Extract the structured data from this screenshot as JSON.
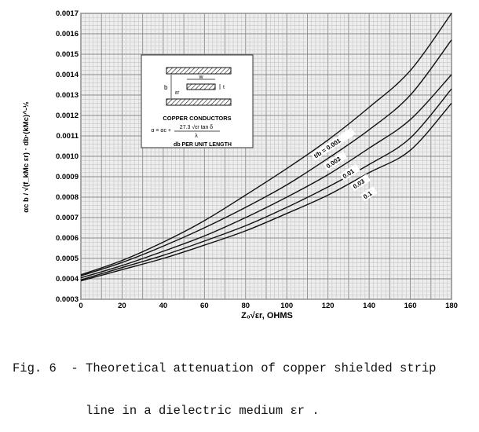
{
  "chart_data": {
    "type": "line",
    "title": "",
    "xlabel": "Z₀√εr, OHMS",
    "ylabel": "αc b / √(f_kMc εr) · db·(kMc)^-½",
    "xlim": [
      0,
      180
    ],
    "ylim": [
      0.0003,
      0.0017
    ],
    "x_ticks": [
      "0",
      "20",
      "40",
      "60",
      "80",
      "100",
      "120",
      "140",
      "160",
      "180"
    ],
    "y_ticks": [
      "0.0003",
      "0.0004",
      "0.0005",
      "0.0006",
      "0.0007",
      "0.0008",
      "0.0009",
      "0.0010",
      "0.0011",
      "0.0012",
      "0.0013",
      "0.0014",
      "0.0015",
      "0.0016",
      "0.0017"
    ],
    "grid": true,
    "series": [
      {
        "name": "t/b = 0.001",
        "x": [
          0,
          20,
          40,
          60,
          80,
          100,
          120,
          140,
          160,
          180
        ],
        "y": [
          0.00042,
          0.00049,
          0.00058,
          0.000685,
          0.00081,
          0.00094,
          0.00108,
          0.00124,
          0.00142,
          0.0017
        ]
      },
      {
        "name": "0.003",
        "x": [
          0,
          20,
          40,
          60,
          80,
          100,
          120,
          140,
          160,
          180
        ],
        "y": [
          0.000415,
          0.00048,
          0.00056,
          0.00065,
          0.00075,
          0.00086,
          0.00099,
          0.00113,
          0.0013,
          0.00157
        ]
      },
      {
        "name": "0.01",
        "x": [
          0,
          20,
          40,
          60,
          80,
          100,
          120,
          140,
          160,
          180
        ],
        "y": [
          0.000405,
          0.000465,
          0.000535,
          0.00061,
          0.0007,
          0.0008,
          0.00091,
          0.00104,
          0.00118,
          0.0014
        ]
      },
      {
        "name": "0.03",
        "x": [
          0,
          20,
          40,
          60,
          80,
          100,
          120,
          140,
          160,
          180
        ],
        "y": [
          0.000395,
          0.000455,
          0.000515,
          0.000585,
          0.00066,
          0.00075,
          0.00085,
          0.00096,
          0.00109,
          0.00133
        ]
      },
      {
        "name": "0.1",
        "x": [
          0,
          20,
          40,
          60,
          80,
          100,
          120,
          140,
          160,
          180
        ],
        "y": [
          0.00039,
          0.000445,
          0.0005,
          0.000565,
          0.000635,
          0.00072,
          0.00081,
          0.00092,
          0.00103,
          0.00126
        ]
      }
    ]
  },
  "inset": {
    "label_w": "w",
    "label_t": "t",
    "label_b": "b",
    "label_er": "εr",
    "heading": "COPPER CONDUCTORS",
    "formula_left": "α = αc + ",
    "formula_num": "27.3 √εr tan δ",
    "formula_den": "λ",
    "units": "db PER UNIT LENGTH"
  },
  "caption": {
    "line1": "Fig. 6  - Theoretical attenuation of copper shielded strip",
    "line2": "          line in a dielectric medium εr ."
  },
  "colors": {
    "grid": "#b8b8b8",
    "curve": "#111111",
    "plot_bg": "#eeeeee"
  }
}
